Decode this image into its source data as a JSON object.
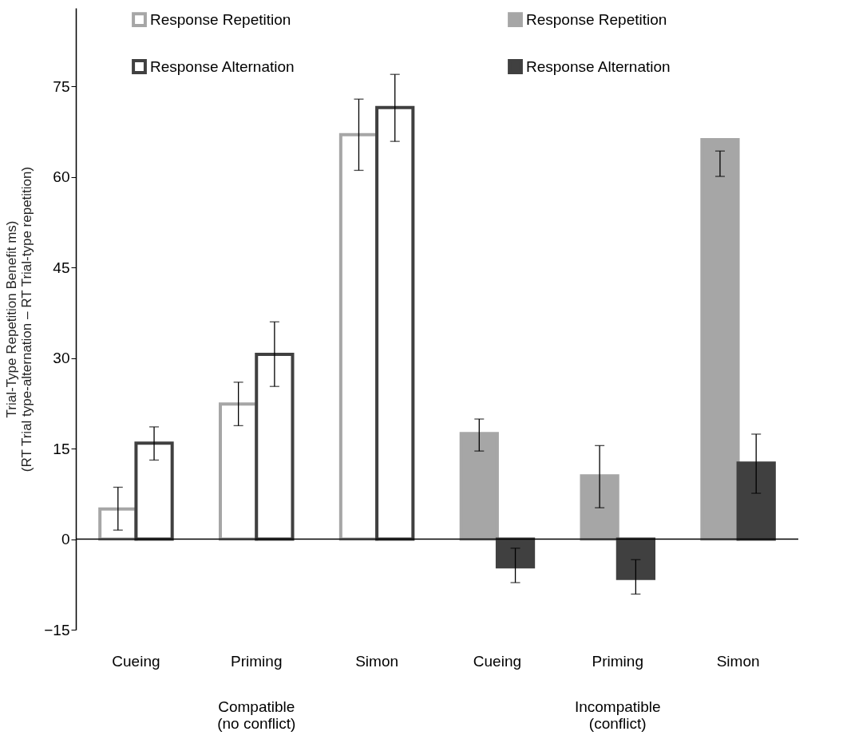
{
  "chart_data": {
    "type": "bar",
    "ylabel": "Trial-Type Repetition Benefit ms)\n(RT Trial type-alternation – RT Trial-type repetition)",
    "categories": [
      "Cueing",
      "Priming",
      "Simon",
      "Cueing",
      "Priming",
      "Simon"
    ],
    "series": [
      {
        "name": "Response Repetition",
        "color": "#a6a6a6",
        "values": [
          5.0,
          22.4,
          67.0,
          null,
          null,
          null
        ],
        "errors": [
          [
            1.5,
            8.6
          ],
          [
            18.8,
            26.0
          ],
          [
            61.1,
            72.9
          ],
          null,
          null,
          null
        ]
      },
      {
        "name": "Response Alternation",
        "color": "#404040",
        "values": [
          15.9,
          30.6,
          71.5,
          null,
          null,
          null
        ],
        "errors": [
          [
            13.1,
            18.6
          ],
          [
            25.3,
            36.0
          ],
          [
            65.9,
            77.0
          ],
          null,
          null,
          null
        ]
      },
      {
        "name": "Response Repetition",
        "color": "#a6a6a6",
        "values": [
          null,
          null,
          null,
          17.5,
          10.5,
          66.2
        ],
        "errors": [
          null,
          null,
          null,
          [
            14.6,
            19.9
          ],
          [
            5.2,
            15.5
          ],
          [
            60.1,
            64.3
          ]
        ]
      },
      {
        "name": "Response Alternation",
        "color": "#404040",
        "values": [
          null,
          null,
          null,
          -4.6,
          -6.5,
          12.6
        ],
        "errors": [
          null,
          null,
          null,
          [
            -7.2,
            -1.5
          ],
          [
            -9.1,
            -3.4
          ],
          [
            7.6,
            17.4
          ]
        ]
      }
    ],
    "ylim": [
      -15,
      88
    ],
    "yticks": [
      -15,
      0,
      15,
      30,
      45,
      60,
      75
    ],
    "ref_lines": [
      {
        "axis": "y",
        "value": 0
      }
    ],
    "annotations": [
      "Compatible\n(no conflict)",
      "Incompatible\n(conflict)"
    ],
    "legend": "top",
    "grid": false
  }
}
